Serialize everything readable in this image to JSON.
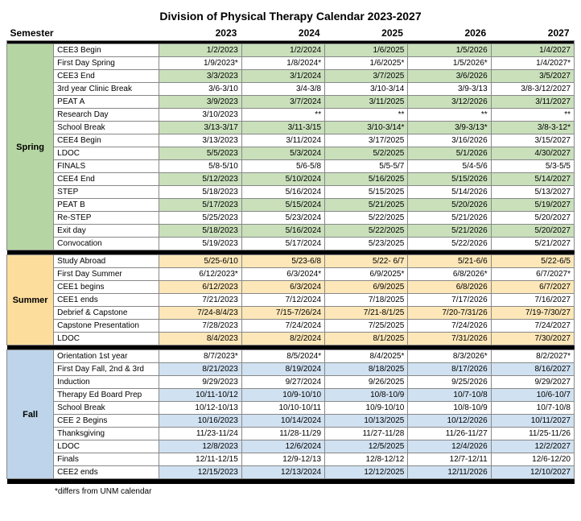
{
  "title": "Division of Physical Therapy Calendar 2023-2027",
  "semester_header": "Semester",
  "years": [
    "2023",
    "2024",
    "2025",
    "2026",
    "2027"
  ],
  "footnote": "*differs from UNM calendar",
  "colors": {
    "spring_sem": "#b5d6a3",
    "spring_hl": "#c9e0bb",
    "summer_sem": "#fcdd9c",
    "summer_hl": "#fde7b8",
    "fall_sem": "#bdd4ea",
    "fall_hl": "#d0e1f1",
    "white": "#ffffff",
    "black": "#000000"
  },
  "semesters": [
    {
      "name": "Spring",
      "sem_color": "spring_sem",
      "rows": [
        {
          "label": "CEE3 Begin",
          "hl": true,
          "v": [
            "1/2/2023",
            "1/2/2024",
            "1/6/2025",
            "1/5/2026",
            "1/4/2027"
          ]
        },
        {
          "label": "First Day Spring",
          "hl": false,
          "v": [
            "1/9/2023*",
            "1/8/2024*",
            "1/6/2025*",
            "1/5/2026*",
            "1/4/2027*"
          ]
        },
        {
          "label": "CEE3 End",
          "hl": true,
          "v": [
            "3/3/2023",
            "3/1/2024",
            "3/7/2025",
            "3/6/2026",
            "3/5/2027"
          ]
        },
        {
          "label": "3rd year Clinic Break",
          "hl": false,
          "v": [
            "3/6-3/10",
            "3/4-3/8",
            "3/10-3/14",
            "3/9-3/13",
            "3/8-3/12/2027"
          ]
        },
        {
          "label": "PEAT A",
          "hl": true,
          "v": [
            "3/9/2023",
            "3/7/2024",
            "3/11/2025",
            "3/12/2026",
            "3/11/2027"
          ]
        },
        {
          "label": "Research Day",
          "hl": false,
          "v": [
            "3/10/2023",
            "**",
            "**",
            "**",
            "**"
          ]
        },
        {
          "label": "School Break",
          "hl": true,
          "v": [
            "3/13-3/17",
            "3/11-3/15",
            "3/10-3/14*",
            "3/9-3/13*",
            "3/8-3-12*"
          ]
        },
        {
          "label": "CEE4  Begin",
          "hl": false,
          "v": [
            "3/13/2023",
            "3/11/2024",
            "3/17/2025",
            "3/16/2026",
            "3/15/2027"
          ]
        },
        {
          "label": "LDOC",
          "hl": true,
          "v": [
            "5/5/2023",
            "5/3/2024",
            "5/2/2025",
            "5/1/2026",
            "4/30/2027"
          ]
        },
        {
          "label": "FINALS",
          "hl": false,
          "v": [
            "5/8-5/10",
            "5/6-5/8",
            "5/5-5/7",
            "5/4-5/6",
            "5/3-5/5"
          ]
        },
        {
          "label": "CEE4 End",
          "hl": true,
          "v": [
            "5/12/2023",
            "5/10/2024",
            "5/16/2025",
            "5/15/2026",
            "5/14/2027"
          ]
        },
        {
          "label": "STEP",
          "hl": false,
          "v": [
            "5/18/2023",
            "5/16/2024",
            "5/15/2025",
            "5/14/2026",
            "5/13/2027"
          ]
        },
        {
          "label": "PEAT B",
          "hl": true,
          "v": [
            "5/17/2023",
            "5/15/2024",
            "5/21/2025",
            "5/20/2026",
            "5/19/2027"
          ]
        },
        {
          "label": "Re-STEP",
          "hl": false,
          "v": [
            "5/25/2023",
            "5/23/2024",
            "5/22/2025",
            "5/21/2026",
            "5/20/2027"
          ]
        },
        {
          "label": "Exit day",
          "hl": true,
          "v": [
            "5/18/2023",
            "5/16/2024",
            "5/22/2025",
            "5/21/2026",
            "5/20/2027"
          ]
        },
        {
          "label": "Convocation",
          "hl": false,
          "v": [
            "5/19/2023",
            "5/17/2024",
            "5/23/2025",
            "5/22/2026",
            "5/21/2027"
          ]
        }
      ]
    },
    {
      "name": "Summer",
      "sem_color": "summer_sem",
      "rows": [
        {
          "label": "Study Abroad",
          "hl": true,
          "v": [
            "5/25-6/10",
            "5/23-6/8",
            "5/22- 6/7",
            "5/21-6/6",
            "5/22-6/5"
          ]
        },
        {
          "label": "First Day Summer",
          "hl": false,
          "v": [
            "6/12/2023*",
            "6/3/2024*",
            "6/9/2025*",
            "6/8/2026*",
            "6/7/2027*"
          ]
        },
        {
          "label": "CEE1 begins",
          "hl": true,
          "v": [
            "6/12/2023",
            "6/3/2024",
            "6/9/2025",
            "6/8/2026",
            "6/7/2027"
          ]
        },
        {
          "label": "CEE1 ends",
          "hl": false,
          "v": [
            "7/21/2023",
            "7/12/2024",
            "7/18/2025",
            "7/17/2026",
            "7/16/2027"
          ]
        },
        {
          "label": "Debrief & Capstone",
          "hl": true,
          "v": [
            "7/24-8/4/23",
            "7/15-7/26/24",
            "7/21-8/1/25",
            "7/20-7/31/26",
            "7/19-7/30/27"
          ]
        },
        {
          "label": "Capstone Presentation",
          "hl": false,
          "v": [
            "7/28/2023",
            "7/24/2024",
            "7/25/2025",
            "7/24/2026",
            "7/24/2027"
          ]
        },
        {
          "label": "LDOC",
          "hl": true,
          "v": [
            "8/4/2023",
            "8/2/2024",
            "8/1/2025",
            "7/31/2026",
            "7/30/2027"
          ]
        }
      ]
    },
    {
      "name": "Fall",
      "sem_color": "fall_sem",
      "rows": [
        {
          "label": "Orientation 1st year",
          "hl": false,
          "v": [
            "8/7/2023*",
            "8/5/2024*",
            "8/4/2025*",
            "8/3/2026*",
            "8/2/2027*"
          ]
        },
        {
          "label": "First Day Fall, 2nd & 3rd",
          "hl": true,
          "v": [
            "8/21/2023",
            "8/19/2024",
            "8/18/2025",
            "8/17/2026",
            "8/16/2027"
          ]
        },
        {
          "label": "Induction",
          "hl": false,
          "v": [
            "9/29/2023",
            "9/27/2024",
            "9/26/2025",
            "9/25/2026",
            "9/29/2027"
          ]
        },
        {
          "label": "Therapy Ed Board Prep",
          "hl": true,
          "v": [
            "10/11-10/12",
            "10/9-10/10",
            "10/8-10/9",
            "10/7-10/8",
            "10/6-10/7"
          ]
        },
        {
          "label": "School Break",
          "hl": false,
          "v": [
            "10/12-10/13",
            "10/10-10/11",
            "10/9-10/10",
            "10/8-10/9",
            "10/7-10/8"
          ]
        },
        {
          "label": "CEE 2 Begins",
          "hl": true,
          "v": [
            "10/16/2023",
            "10/14/2024",
            "10/13/2025",
            "10/12/2026",
            "10/11/2027"
          ]
        },
        {
          "label": "Thanksgiving",
          "hl": false,
          "v": [
            "11/23-11/24",
            "11/28-11/29",
            "11/27-11/28",
            "11/26-11/27",
            "11/25-11/26"
          ]
        },
        {
          "label": "LDOC",
          "hl": true,
          "v": [
            "12/8/2023",
            "12/6/2024",
            "12/5/2025",
            "12/4/2026",
            "12/2/2027"
          ]
        },
        {
          "label": "Finals",
          "hl": false,
          "v": [
            "12/11-12/15",
            "12/9-12/13",
            "12/8-12/12",
            "12/7-12/11",
            "12/6-12/20"
          ]
        },
        {
          "label": "CEE2 ends",
          "hl": true,
          "v": [
            "12/15/2023",
            "12/13/2024",
            "12/12/2025",
            "12/11/2026",
            "12/10/2027"
          ]
        }
      ]
    }
  ]
}
